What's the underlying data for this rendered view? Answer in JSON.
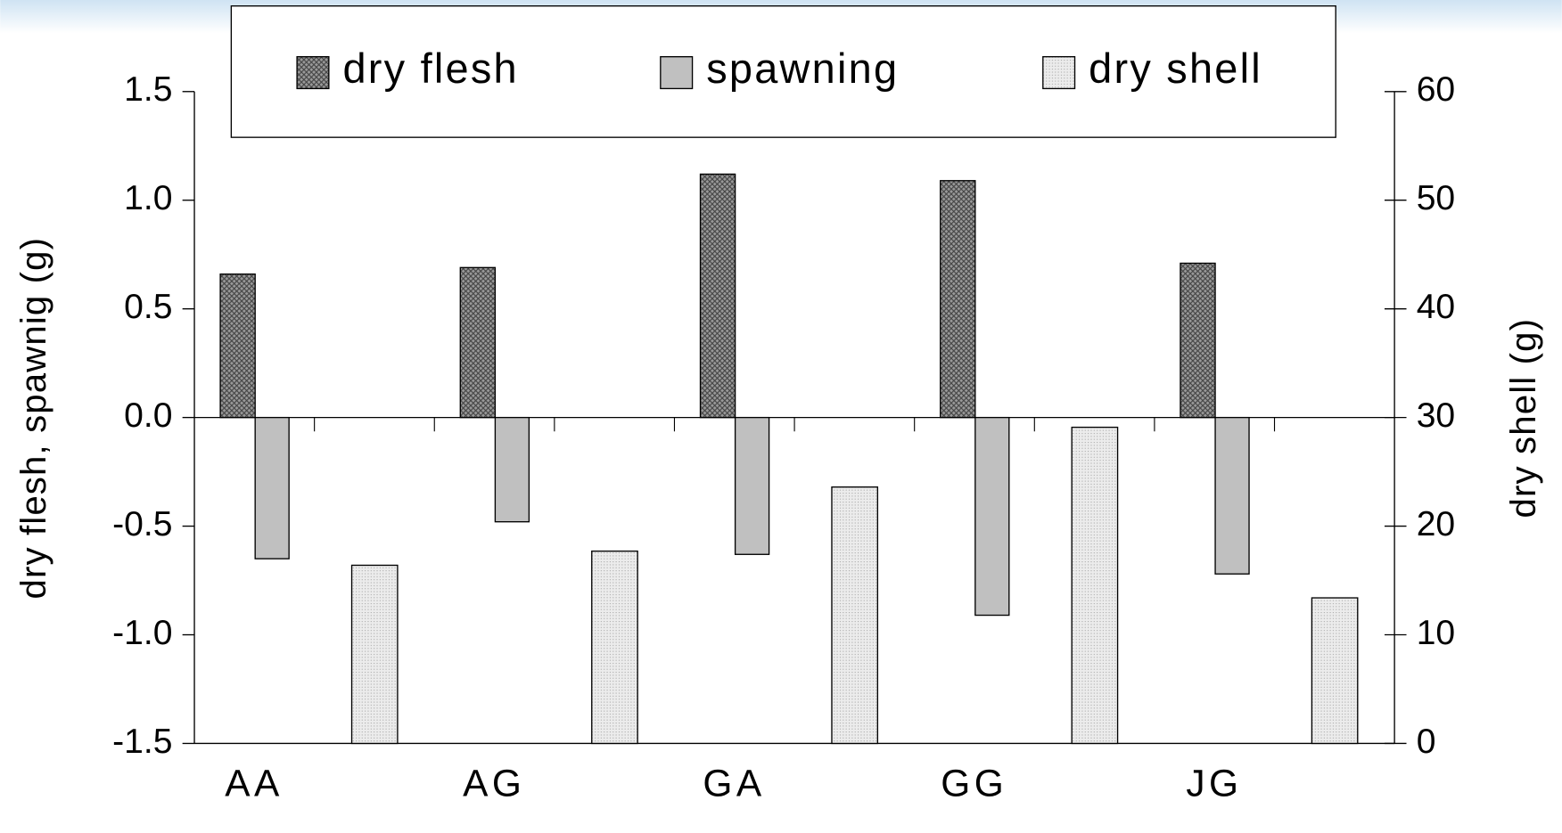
{
  "chart_data": {
    "type": "bar",
    "categories": [
      "AA",
      "AG",
      "GA",
      "GG",
      "JG"
    ],
    "series": [
      {
        "name": "dry flesh",
        "color": "#8c8c8c",
        "values": [
          0.66,
          0.69,
          1.12,
          1.09,
          0.71
        ]
      },
      {
        "name": "spawning",
        "color": "#c0c0c0",
        "values": [
          -0.65,
          -0.48,
          -0.63,
          -0.91,
          -0.72
        ]
      },
      {
        "name": "dry shell",
        "color": "#e4e4e4",
        "axis": "y2",
        "values": [
          16.4,
          17.7,
          23.6,
          29.1,
          13.4
        ]
      }
    ],
    "ylabel": "dry flesh, spawnig (g)",
    "y2label": "dry shell (g)",
    "ylim": [
      -1.5,
      1.5
    ],
    "yticks": [
      -1.5,
      {
        "value": -1,
        "label": "-1.0"
      },
      -0.5,
      {
        "value": 0,
        "label": "0.0"
      },
      0.5,
      {
        "value": 1,
        "label": "1.0"
      },
      1.5
    ],
    "y2lim": [
      0,
      60
    ],
    "y2ticks": [
      0,
      10,
      20,
      30,
      40,
      50,
      60
    ],
    "legend": "top"
  }
}
